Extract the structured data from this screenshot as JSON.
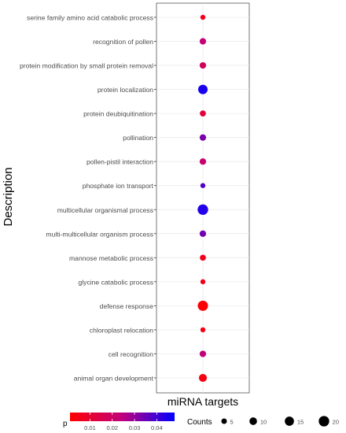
{
  "chart_data": {
    "type": "scatter",
    "title": "",
    "xlabel": "miRNA targets",
    "ylabel": "Description",
    "x_category": "miRNA targets",
    "grid": true,
    "legend_position": "bottom",
    "categories": [
      "serine family amino acid catabolic process",
      "recognition of pollen",
      "protein modification by small protein removal",
      "protein localization",
      "protein deubiquitination",
      "pollination",
      "pollen-pistil interaction",
      "phosphate ion transport",
      "multicellular organismal process",
      "multi-multicellular organism process",
      "mannose metabolic process",
      "glycine catabolic process",
      "defense response",
      "chloroplast relocation",
      "cell recognition",
      "animal organ development"
    ],
    "counts": [
      4,
      7,
      7,
      16,
      6,
      7,
      7,
      4,
      20,
      7,
      6,
      4,
      19,
      4,
      7,
      11
    ],
    "p": [
      0.006,
      0.023,
      0.018,
      0.045,
      0.012,
      0.033,
      0.022,
      0.038,
      0.044,
      0.034,
      0.006,
      0.006,
      0.002,
      0.005,
      0.024,
      0.004
    ],
    "color_legend": {
      "title": "p",
      "ticks": [
        "0.01",
        "0.02",
        "0.03",
        "0.04"
      ],
      "tick_values": [
        0.01,
        0.02,
        0.03,
        0.04
      ],
      "range": [
        0.001,
        0.048
      ],
      "low_color": "#ff0000",
      "high_color": "#0000ff"
    },
    "size_legend": {
      "title": "Counts",
      "values": [
        5,
        10,
        15,
        20
      ],
      "labels": [
        "5",
        "10",
        "15",
        "20"
      ]
    }
  }
}
